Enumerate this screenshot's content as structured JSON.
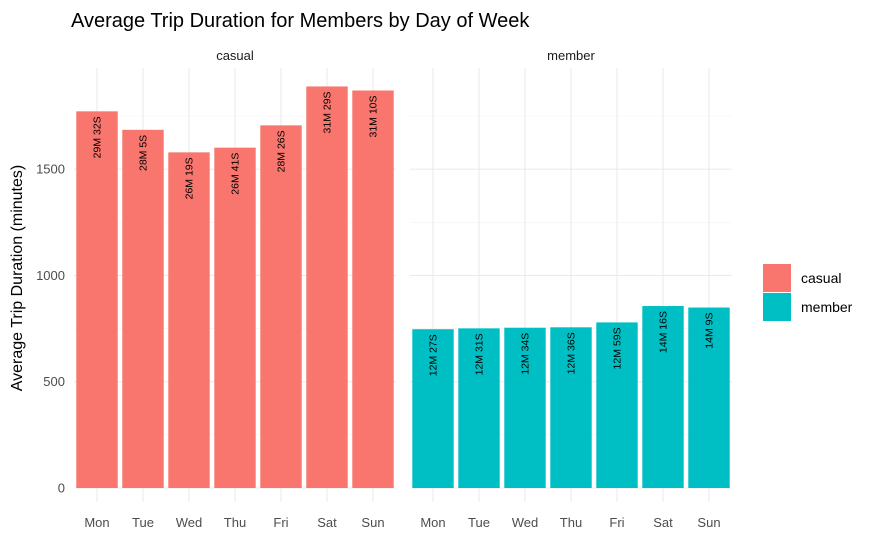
{
  "chart_data": {
    "type": "bar",
    "title": "Average Trip Duration for Members by Day of Week",
    "xlabel": "",
    "ylabel": "Average Trip Duration (minutes)",
    "ylim": [
      0,
      1880
    ],
    "yticks": [
      0,
      500,
      1000,
      1500
    ],
    "grid": true,
    "legend_position": "right",
    "categories": [
      "Mon",
      "Tue",
      "Wed",
      "Thu",
      "Fri",
      "Sat",
      "Sun"
    ],
    "facets": [
      {
        "name": "casual",
        "color": "#F8766D",
        "values": [
          1772,
          1685,
          1579,
          1601,
          1706,
          1889,
          1870
        ],
        "labels": [
          "29M 32S",
          "28M 5S",
          "26M 19S",
          "26M 41S",
          "28M 26S",
          "31M 29S",
          "31M 10S"
        ]
      },
      {
        "name": "member",
        "color": "#00BFC4",
        "values": [
          747,
          751,
          754,
          756,
          779,
          856,
          849
        ],
        "labels": [
          "12M 27S",
          "12M 31S",
          "12M 34S",
          "12M 36S",
          "12M 59S",
          "14M 16S",
          "14M 9S"
        ]
      }
    ],
    "legend": [
      {
        "label": "casual",
        "color": "#F8766D"
      },
      {
        "label": "member",
        "color": "#00BFC4"
      }
    ]
  }
}
